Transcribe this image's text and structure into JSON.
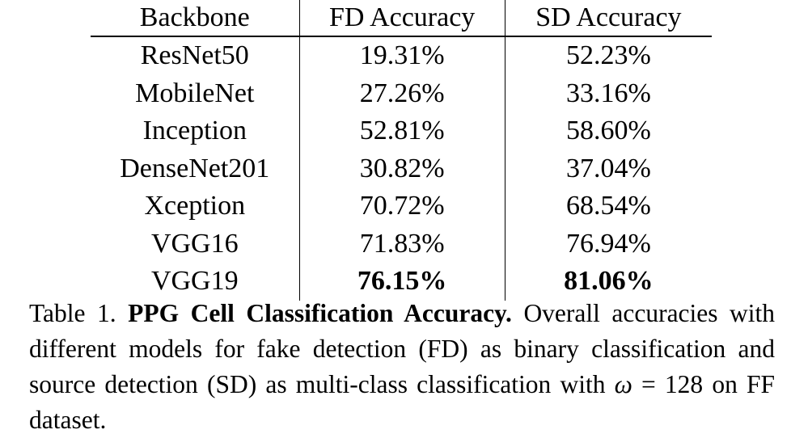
{
  "table": {
    "headers": [
      "Backbone",
      "FD Accuracy",
      "SD Accuracy"
    ],
    "rows": [
      {
        "backbone": "ResNet50",
        "fd": "19.31%",
        "sd": "52.23%"
      },
      {
        "backbone": "MobileNet",
        "fd": "27.26%",
        "sd": "33.16%"
      },
      {
        "backbone": "Inception",
        "fd": "52.81%",
        "sd": "58.60%"
      },
      {
        "backbone": "DenseNet201",
        "fd": "30.82%",
        "sd": "37.04%"
      },
      {
        "backbone": "Xception",
        "fd": "70.72%",
        "sd": "68.54%"
      },
      {
        "backbone": "VGG16",
        "fd": "71.83%",
        "sd": "76.94%"
      },
      {
        "backbone": "VGG19",
        "fd": "76.15%",
        "sd": "81.06%"
      }
    ],
    "best_row_index": 6
  },
  "caption": {
    "label": "Table 1.",
    "title": "PPG Cell Classification Accuracy.",
    "text_part1": "Overall accuracies with different models for fake detection (FD) as binary classifica­tion and source detection (SD) as multi-class classification with",
    "omega_symbol": "ω",
    "text_part2": "= 128 on FF dataset."
  }
}
